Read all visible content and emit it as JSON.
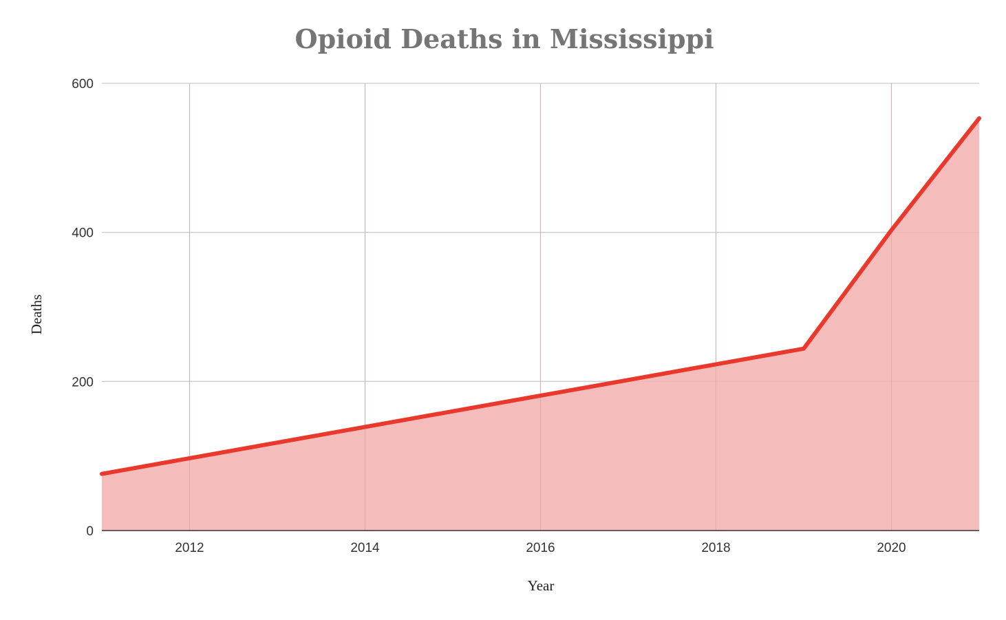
{
  "chart_data": {
    "type": "area",
    "title": "Opioid Deaths in Mississippi",
    "xlabel": "Year",
    "ylabel": "Deaths",
    "xlim": [
      2011,
      2021
    ],
    "ylim": [
      0,
      600
    ],
    "x_ticks": [
      "2012",
      "2014",
      "2016",
      "2018",
      "2020"
    ],
    "y_ticks": [
      "0",
      "200",
      "400",
      "600"
    ],
    "grid": true,
    "legend": "none",
    "x": [
      2011,
      2012,
      2013,
      2014,
      2015,
      2016,
      2017,
      2018,
      2019,
      2020,
      2021
    ],
    "series": [
      {
        "values": [
          76,
          97,
          118,
          139,
          160,
          181,
          202,
          223,
          244,
          403,
          553
        ],
        "line_color": "#e8392c",
        "fill_color": "#f4b3b3"
      }
    ]
  }
}
